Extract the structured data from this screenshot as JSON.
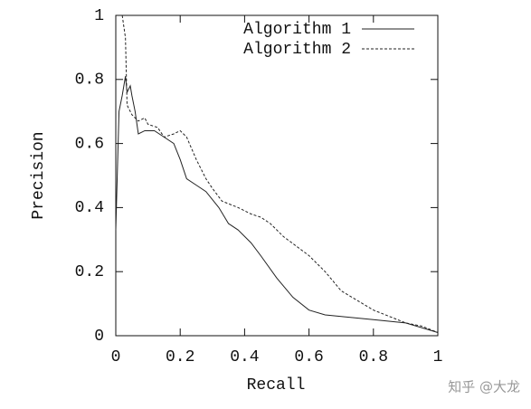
{
  "chart_data": {
    "type": "line",
    "xlabel": "Recall",
    "ylabel": "Precision",
    "xlim": [
      0,
      1
    ],
    "ylim": [
      0,
      1
    ],
    "xticks": [
      0,
      0.2,
      0.4,
      0.6,
      0.8,
      1
    ],
    "yticks": [
      0,
      0.2,
      0.4,
      0.6,
      0.8,
      1
    ],
    "legend": "top-right",
    "watermark": "知乎 @大龙",
    "series": [
      {
        "name": "Algorithm 1",
        "color": "#222222",
        "dash": "solid",
        "x": [
          0,
          0.01,
          0.02,
          0.03,
          0.035,
          0.045,
          0.05,
          0.06,
          0.07,
          0.09,
          0.12,
          0.15,
          0.18,
          0.2,
          0.22,
          0.25,
          0.28,
          0.32,
          0.35,
          0.38,
          0.42,
          0.45,
          0.5,
          0.55,
          0.6,
          0.65,
          0.7,
          0.8,
          0.9,
          0.95,
          1
        ],
        "values": [
          0.33,
          0.7,
          0.75,
          0.81,
          0.76,
          0.78,
          0.75,
          0.7,
          0.63,
          0.64,
          0.64,
          0.62,
          0.6,
          0.55,
          0.49,
          0.47,
          0.45,
          0.4,
          0.35,
          0.33,
          0.29,
          0.25,
          0.18,
          0.12,
          0.08,
          0.065,
          0.06,
          0.05,
          0.04,
          0.025,
          0.01
        ]
      },
      {
        "name": "Algorithm 2",
        "color": "#222222",
        "dash": "dashed",
        "x": [
          0.02,
          0.03,
          0.035,
          0.05,
          0.07,
          0.09,
          0.1,
          0.13,
          0.15,
          0.18,
          0.2,
          0.22,
          0.25,
          0.28,
          0.3,
          0.33,
          0.38,
          0.42,
          0.45,
          0.48,
          0.52,
          0.56,
          0.6,
          0.65,
          0.7,
          0.75,
          0.8,
          0.85,
          0.9,
          0.95,
          1
        ],
        "values": [
          1.0,
          0.93,
          0.72,
          0.69,
          0.67,
          0.68,
          0.66,
          0.65,
          0.62,
          0.63,
          0.64,
          0.62,
          0.55,
          0.49,
          0.46,
          0.42,
          0.4,
          0.38,
          0.37,
          0.35,
          0.31,
          0.28,
          0.25,
          0.2,
          0.14,
          0.11,
          0.08,
          0.06,
          0.04,
          0.03,
          0.01
        ]
      }
    ]
  }
}
